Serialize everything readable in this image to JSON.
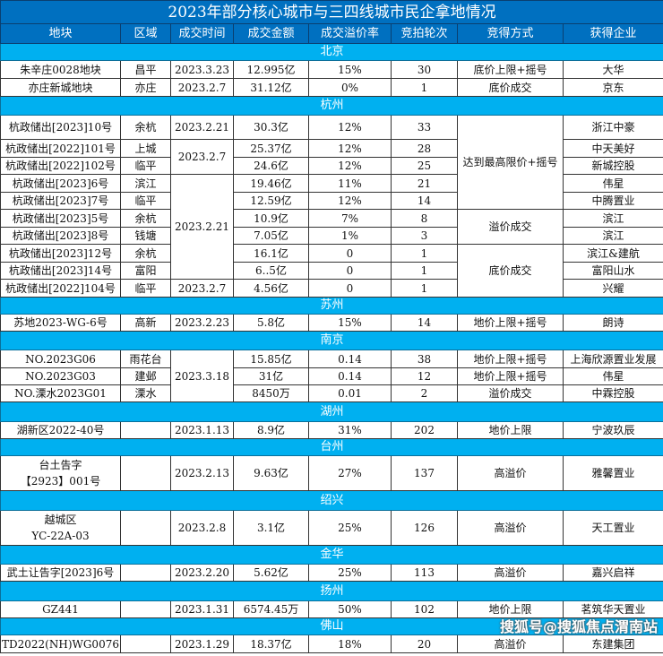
{
  "title": "2023年部分核心城市与三四线城市民企拿地情况",
  "headers": [
    "地块",
    "区域",
    "成交时间",
    "成交金额",
    "成交溢价率",
    "竞拍轮次",
    "竞得方式",
    "获得企业"
  ],
  "colors": {
    "title_bg": "#0070c0",
    "section_bg": "#00b0f0"
  },
  "sections": [
    {
      "city": "北京",
      "rows": [
        [
          "朱辛庄0028地块",
          "昌平",
          "2023.3.23",
          "12.995亿",
          "15%",
          "30",
          "底价上限+摇号",
          "大华"
        ],
        [
          "亦庄新城地块",
          "亦庄",
          "2023.2.7",
          "31.12亿",
          "0%",
          "1",
          "底价成交",
          "京东"
        ]
      ]
    },
    {
      "city": "杭州",
      "rows": [
        [
          "杭政储出[2023]10号",
          "余杭",
          "2023.2.21",
          "30.3亿",
          "12%",
          "33",
          "达到最高限价+摇号",
          "浙江中豪"
        ],
        [
          "杭政储出[2022]101号",
          "上城",
          "2023.2.7",
          "25.37亿",
          "12%",
          "28",
          null,
          "中天美好"
        ],
        [
          "杭政储出[2022]102号",
          "临平",
          null,
          "24.6亿",
          "12%",
          "25",
          null,
          "新城控股"
        ],
        [
          "杭政储出[2023]6号",
          "滨江",
          "2023.2.21",
          "19.46亿",
          "11%",
          "21",
          null,
          "伟星"
        ],
        [
          "杭政储出[2023]7号",
          "临平",
          null,
          "12.59亿",
          "12%",
          "14",
          null,
          "中腾置业"
        ],
        [
          "杭政储出[2023]5号",
          "余杭",
          null,
          "10.9亿",
          "7%",
          "8",
          "溢价成交",
          "滨江"
        ],
        [
          "杭政储出[2023]8号",
          "钱塘",
          null,
          "7.05亿",
          "1%",
          "3",
          null,
          "滨江"
        ],
        [
          "杭政储出[2023]12号",
          "余杭",
          null,
          "16.1亿",
          "0",
          "1",
          "底价成交",
          "滨江&建航"
        ],
        [
          "杭政储出[2023]14号",
          "富阳",
          null,
          "6..5亿",
          "0",
          "1",
          null,
          "富阳山水"
        ],
        [
          "杭政储出[2022]104号",
          "临平",
          "2023.2.7",
          "4.56亿",
          "0",
          "1",
          null,
          "兴耀"
        ]
      ]
    },
    {
      "city": "苏州",
      "rows": [
        [
          "苏地2023-WG-6号",
          "高新",
          "2023.2.23",
          "5.8亿",
          "15%",
          "14",
          "地价上限+摇号",
          "朗诗"
        ]
      ]
    },
    {
      "city": "南京",
      "rows": [
        [
          "NO.2023G06",
          "雨花台",
          "2023.3.18",
          "15.85亿",
          "0.14",
          "38",
          "地价上限+摇号",
          "上海欣源置业发展"
        ],
        [
          "NO.2023G03",
          "建邺",
          null,
          "31亿",
          "0.14",
          "12",
          "地价上限+摇号",
          "伟星"
        ],
        [
          "NO.溧水2023G01",
          "溧水",
          null,
          "8450万",
          "0.01",
          "2",
          "溢价成交",
          "中霖控股"
        ]
      ]
    },
    {
      "city": "湖州",
      "rows": [
        [
          "湖新区2022-40号",
          "",
          "2023.1.13",
          "8.9亿",
          "31%",
          "202",
          "地价上限",
          "宁波玖辰"
        ]
      ]
    },
    {
      "city": "台州",
      "rows": [
        [
          "台土告字\n【2923】001号",
          "",
          "2023.2.13",
          "9.63亿",
          "27%",
          "137",
          "高溢价",
          "雅馨置业"
        ]
      ]
    },
    {
      "city": "绍兴",
      "rows": [
        [
          "越城区\nYC-22A-03",
          "",
          "2023.2.8",
          "3.1亿",
          "25%",
          "126",
          "高溢价",
          "天工置业"
        ]
      ]
    },
    {
      "city": "金华",
      "rows": [
        [
          "武土让告字[2023]6号",
          "",
          "2023.2.20",
          "5.62亿",
          "25%",
          "113",
          "高溢价",
          "嘉兴启祥"
        ]
      ]
    },
    {
      "city": "扬州",
      "rows": [
        [
          "GZ441",
          "",
          "2023.1.31",
          "6574.45万",
          "50%",
          "102",
          "地价上限",
          "茗筑华天置业"
        ]
      ]
    },
    {
      "city": "佛山",
      "rows": [
        [
          "TD2022(NH)WG0076",
          "",
          "2023.1.29",
          "18.37亿",
          "18%",
          "20",
          "高溢价",
          "东建集团"
        ]
      ]
    }
  ],
  "watermark": "搜狐号@搜狐焦点渭南站"
}
